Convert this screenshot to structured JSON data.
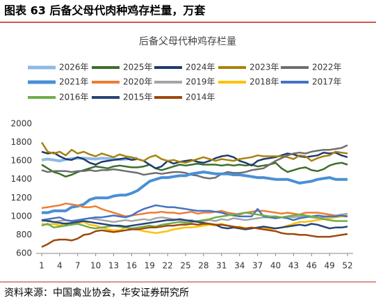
{
  "chart_data": {
    "type": "line",
    "heading": "图表 63 后备父母代肉种鸡存栏量，万套",
    "title": "后备父母代种鸡存栏量",
    "source": "资料来源：中国禽业协会，华安证券研究所",
    "x": [
      1,
      2,
      3,
      4,
      5,
      6,
      7,
      8,
      9,
      10,
      11,
      12,
      13,
      14,
      15,
      16,
      17,
      18,
      19,
      20,
      21,
      22,
      23,
      24,
      25,
      26,
      27,
      28,
      29,
      30,
      31,
      32,
      33,
      34,
      35,
      36,
      37,
      38,
      39,
      40,
      41,
      42,
      43,
      44,
      45,
      46,
      47,
      48,
      49,
      50,
      51,
      52
    ],
    "xlim": [
      1,
      52
    ],
    "xticks": [
      1,
      4,
      7,
      10,
      13,
      16,
      19,
      22,
      25,
      28,
      31,
      34,
      37,
      40,
      43,
      46,
      49,
      52
    ],
    "ylim": [
      600,
      2000
    ],
    "yticks": [
      600,
      800,
      1000,
      1200,
      1400,
      1600,
      1800,
      2000
    ],
    "grid": false,
    "series": [
      {
        "name": "2026年",
        "color": "#8db9e6",
        "values": [
          1610,
          1620,
          1610,
          1600,
          1615,
          1625,
          1630,
          1630,
          1625,
          1620,
          1630,
          1625,
          1620,
          1615,
          1620,
          1625,
          1630,
          null,
          null,
          null,
          null,
          null,
          null,
          null,
          null,
          null,
          null,
          null,
          null,
          null,
          null,
          null,
          null,
          null,
          null,
          null,
          null,
          null,
          null,
          null,
          null,
          null,
          null,
          null,
          null,
          null,
          null,
          null,
          null,
          null,
          null,
          null
        ]
      },
      {
        "name": "2025年",
        "color": "#3b6e2b",
        "values": [
          1560,
          1520,
          1480,
          1460,
          1430,
          1450,
          1480,
          1500,
          1520,
          1540,
          1530,
          1520,
          1540,
          1550,
          1540,
          1530,
          1530,
          1540,
          1560,
          1520,
          1500,
          1520,
          1540,
          1560,
          1550,
          1560,
          1570,
          1560,
          1560,
          1560,
          1550,
          1560,
          1550,
          1560,
          1550,
          1560,
          1540,
          1550,
          1560,
          1580,
          1520,
          1480,
          1500,
          1520,
          1530,
          1500,
          1490,
          1510,
          1550,
          1570,
          1580,
          1560
        ]
      },
      {
        "name": "2024年",
        "color": "#1f3a6e",
        "values": [
          1700,
          1680,
          1690,
          1650,
          1620,
          1610,
          1640,
          1620,
          1580,
          1560,
          1590,
          1600,
          1610,
          1620,
          1630,
          1610,
          1620,
          1600,
          1560,
          1520,
          1540,
          1600,
          1570,
          1590,
          1600,
          1610,
          1590,
          1580,
          1600,
          1630,
          1650,
          1660,
          1640,
          1600,
          1580,
          1550,
          1600,
          1620,
          1630,
          1640,
          1660,
          1680,
          1670,
          1650,
          1640,
          1650,
          1660,
          1690,
          1680,
          1690,
          1660,
          1640
        ]
      },
      {
        "name": "2023年",
        "color": "#a8820e",
        "values": [
          1800,
          1700,
          1680,
          1700,
          1660,
          1720,
          1680,
          1700,
          1670,
          1650,
          1680,
          1660,
          1640,
          1670,
          1650,
          1640,
          1620,
          1600,
          1640,
          1660,
          1620,
          1600,
          1610,
          1590,
          1580,
          1600,
          1620,
          1640,
          1620,
          1600,
          1620,
          1610,
          1600,
          1620,
          1630,
          1640,
          1660,
          1650,
          1650,
          1650,
          1650,
          1640,
          1620,
          1660,
          1650,
          1600,
          1630,
          1650,
          1660,
          1700,
          1690,
          1680
        ]
      },
      {
        "name": "2022年",
        "color": "#6e6e6e",
        "values": [
          1500,
          1480,
          1490,
          1490,
          1490,
          1480,
          1490,
          1490,
          1500,
          1490,
          1500,
          1500,
          1510,
          1500,
          1490,
          1480,
          1470,
          1450,
          1460,
          1470,
          1460,
          1470,
          1480,
          1480,
          1470,
          1450,
          1440,
          1420,
          1410,
          1420,
          1460,
          1480,
          1470,
          1470,
          1480,
          1500,
          1510,
          1520,
          1560,
          1600,
          1630,
          1660,
          1680,
          1690,
          1680,
          1700,
          1710,
          1720,
          1720,
          1730,
          1740,
          1770
        ]
      },
      {
        "name": "2021年",
        "color": "#4a8fd6",
        "values": [
          1040,
          1040,
          1060,
          1060,
          1060,
          1100,
          1110,
          1130,
          1180,
          1200,
          1200,
          1200,
          1220,
          1230,
          1230,
          1250,
          1280,
          1330,
          1380,
          1400,
          1420,
          1420,
          1430,
          1440,
          1440,
          1460,
          1470,
          1480,
          1470,
          1460,
          1460,
          1460,
          1450,
          1450,
          1440,
          1430,
          1420,
          1420,
          1410,
          1400,
          1400,
          1400,
          1380,
          1360,
          1370,
          1380,
          1400,
          1410,
          1420,
          1400,
          1400,
          1400
        ]
      },
      {
        "name": "2020年",
        "color": "#ed7d31",
        "values": [
          1090,
          1100,
          1110,
          1120,
          1140,
          1130,
          1120,
          1100,
          1100,
          1110,
          1080,
          1060,
          1040,
          1020,
          1000,
          1010,
          1020,
          1030,
          1040,
          1040,
          1050,
          1040,
          1040,
          1030,
          1040,
          1050,
          1030,
          1040,
          1040,
          1050,
          1060,
          1040,
          1030,
          1020,
          1040,
          1050,
          1060,
          1060,
          1050,
          1040,
          1030,
          1040,
          1030,
          1020,
          1040,
          1040,
          1040,
          1030,
          1020,
          1010,
          1000,
          1000
        ]
      },
      {
        "name": "2019年",
        "color": "#a5a5a5",
        "values": [
          950,
          960,
          940,
          950,
          960,
          950,
          960,
          970,
          980,
          970,
          960,
          950,
          940,
          950,
          960,
          950,
          960,
          970,
          960,
          980,
          990,
          980,
          970,
          960,
          950,
          960,
          940,
          950,
          960,
          950,
          970,
          960,
          980,
          970,
          960,
          970,
          980,
          990,
          990,
          980,
          990,
          1000,
          990,
          1000,
          1000,
          990,
          980,
          990,
          1000,
          1010,
          1020,
          1030
        ]
      },
      {
        "name": "2018年",
        "color": "#ffc000",
        "values": [
          920,
          910,
          920,
          900,
          930,
          920,
          930,
          940,
          910,
          900,
          880,
          860,
          850,
          850,
          880,
          870,
          860,
          840,
          830,
          820,
          830,
          840,
          860,
          870,
          880,
          880,
          890,
          900,
          910,
          900,
          920,
          900,
          880,
          890,
          870,
          880,
          870,
          880,
          860,
          870,
          880,
          900,
          920,
          940,
          940,
          950,
          960,
          970,
          980,
          990,
          1000,
          1010
        ]
      },
      {
        "name": "2017年",
        "color": "#4472c4",
        "values": [
          960,
          970,
          980,
          990,
          960,
          950,
          960,
          970,
          980,
          990,
          990,
          1000,
          1010,
          1000,
          990,
          1010,
          1050,
          1080,
          1100,
          1120,
          1110,
          1100,
          1100,
          1090,
          1080,
          1070,
          1060,
          1060,
          1060,
          1050,
          1040,
          1020,
          1010,
          1000,
          1000,
          1000,
          1080,
          1000,
          990,
          980,
          990,
          980,
          960,
          980,
          990,
          1000,
          1010,
          1000,
          1000,
          1000,
          1010,
          1000
        ]
      },
      {
        "name": "2016年",
        "color": "#70ad47",
        "values": [
          900,
          920,
          880,
          890,
          900,
          910,
          920,
          900,
          880,
          870,
          880,
          890,
          900,
          890,
          880,
          870,
          880,
          890,
          900,
          890,
          910,
          920,
          930,
          940,
          930,
          940,
          950,
          960,
          970,
          990,
          1000,
          1010,
          1020,
          1030,
          1040,
          1030,
          1020,
          1010,
          1000,
          1000,
          990,
          1000,
          1010,
          1020,
          1010,
          1000,
          990,
          970,
          960,
          950,
          950,
          950
        ]
      },
      {
        "name": "2015年",
        "color": "#264478",
        "values": [
          960,
          950,
          940,
          930,
          920,
          930,
          940,
          950,
          940,
          930,
          920,
          910,
          900,
          900,
          890,
          900,
          910,
          920,
          930,
          940,
          950,
          960,
          960,
          970,
          960,
          950,
          940,
          930,
          920,
          910,
          880,
          870,
          880,
          870,
          860,
          870,
          880,
          890,
          880,
          870,
          880,
          890,
          900,
          910,
          900,
          920,
          910,
          890,
          870,
          880,
          880,
          890
        ]
      },
      {
        "name": "2014年",
        "color": "#9e480e",
        "values": [
          670,
          700,
          740,
          750,
          750,
          740,
          760,
          800,
          810,
          840,
          850,
          840,
          830,
          840,
          850,
          860,
          860,
          870,
          880,
          880,
          890,
          900,
          900,
          910,
          910,
          920,
          910,
          920,
          920,
          910,
          910,
          900,
          890,
          880,
          870,
          880,
          870,
          860,
          850,
          840,
          820,
          810,
          810,
          800,
          800,
          790,
          780,
          780,
          780,
          790,
          800,
          810
        ]
      }
    ]
  }
}
